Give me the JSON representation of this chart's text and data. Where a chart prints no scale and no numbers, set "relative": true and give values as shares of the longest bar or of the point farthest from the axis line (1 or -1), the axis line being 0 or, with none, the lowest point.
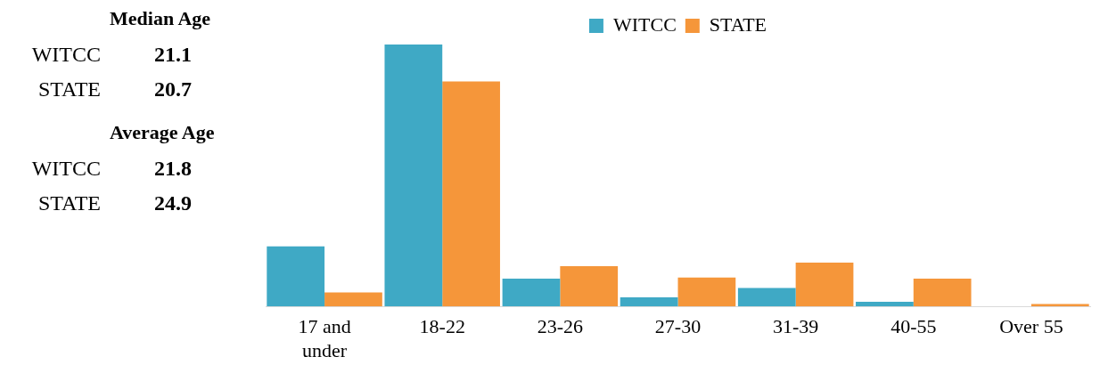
{
  "chart_data": {
    "type": "bar",
    "relative": true,
    "legend": "top",
    "categories": [
      "17 and under",
      "18-22",
      "23-26",
      "27-30",
      "31-39",
      "40-55",
      "Over 55"
    ],
    "series": [
      {
        "name": "WITCC",
        "color": "#3fa9c5",
        "values": [
          0.229,
          1,
          0.106,
          0.035,
          0.07,
          0.018,
          0
        ]
      },
      {
        "name": "STATE",
        "color": "#f5963a",
        "values": [
          0.053,
          0.859,
          0.154,
          0.11,
          0.167,
          0.106,
          0.009
        ]
      }
    ],
    "annotations": [
      "Median Age",
      "WITCC",
      "21.1",
      "STATE",
      "20.7",
      "Average Age",
      "WITCC",
      "21.8",
      "STATE",
      "24.9"
    ]
  }
}
